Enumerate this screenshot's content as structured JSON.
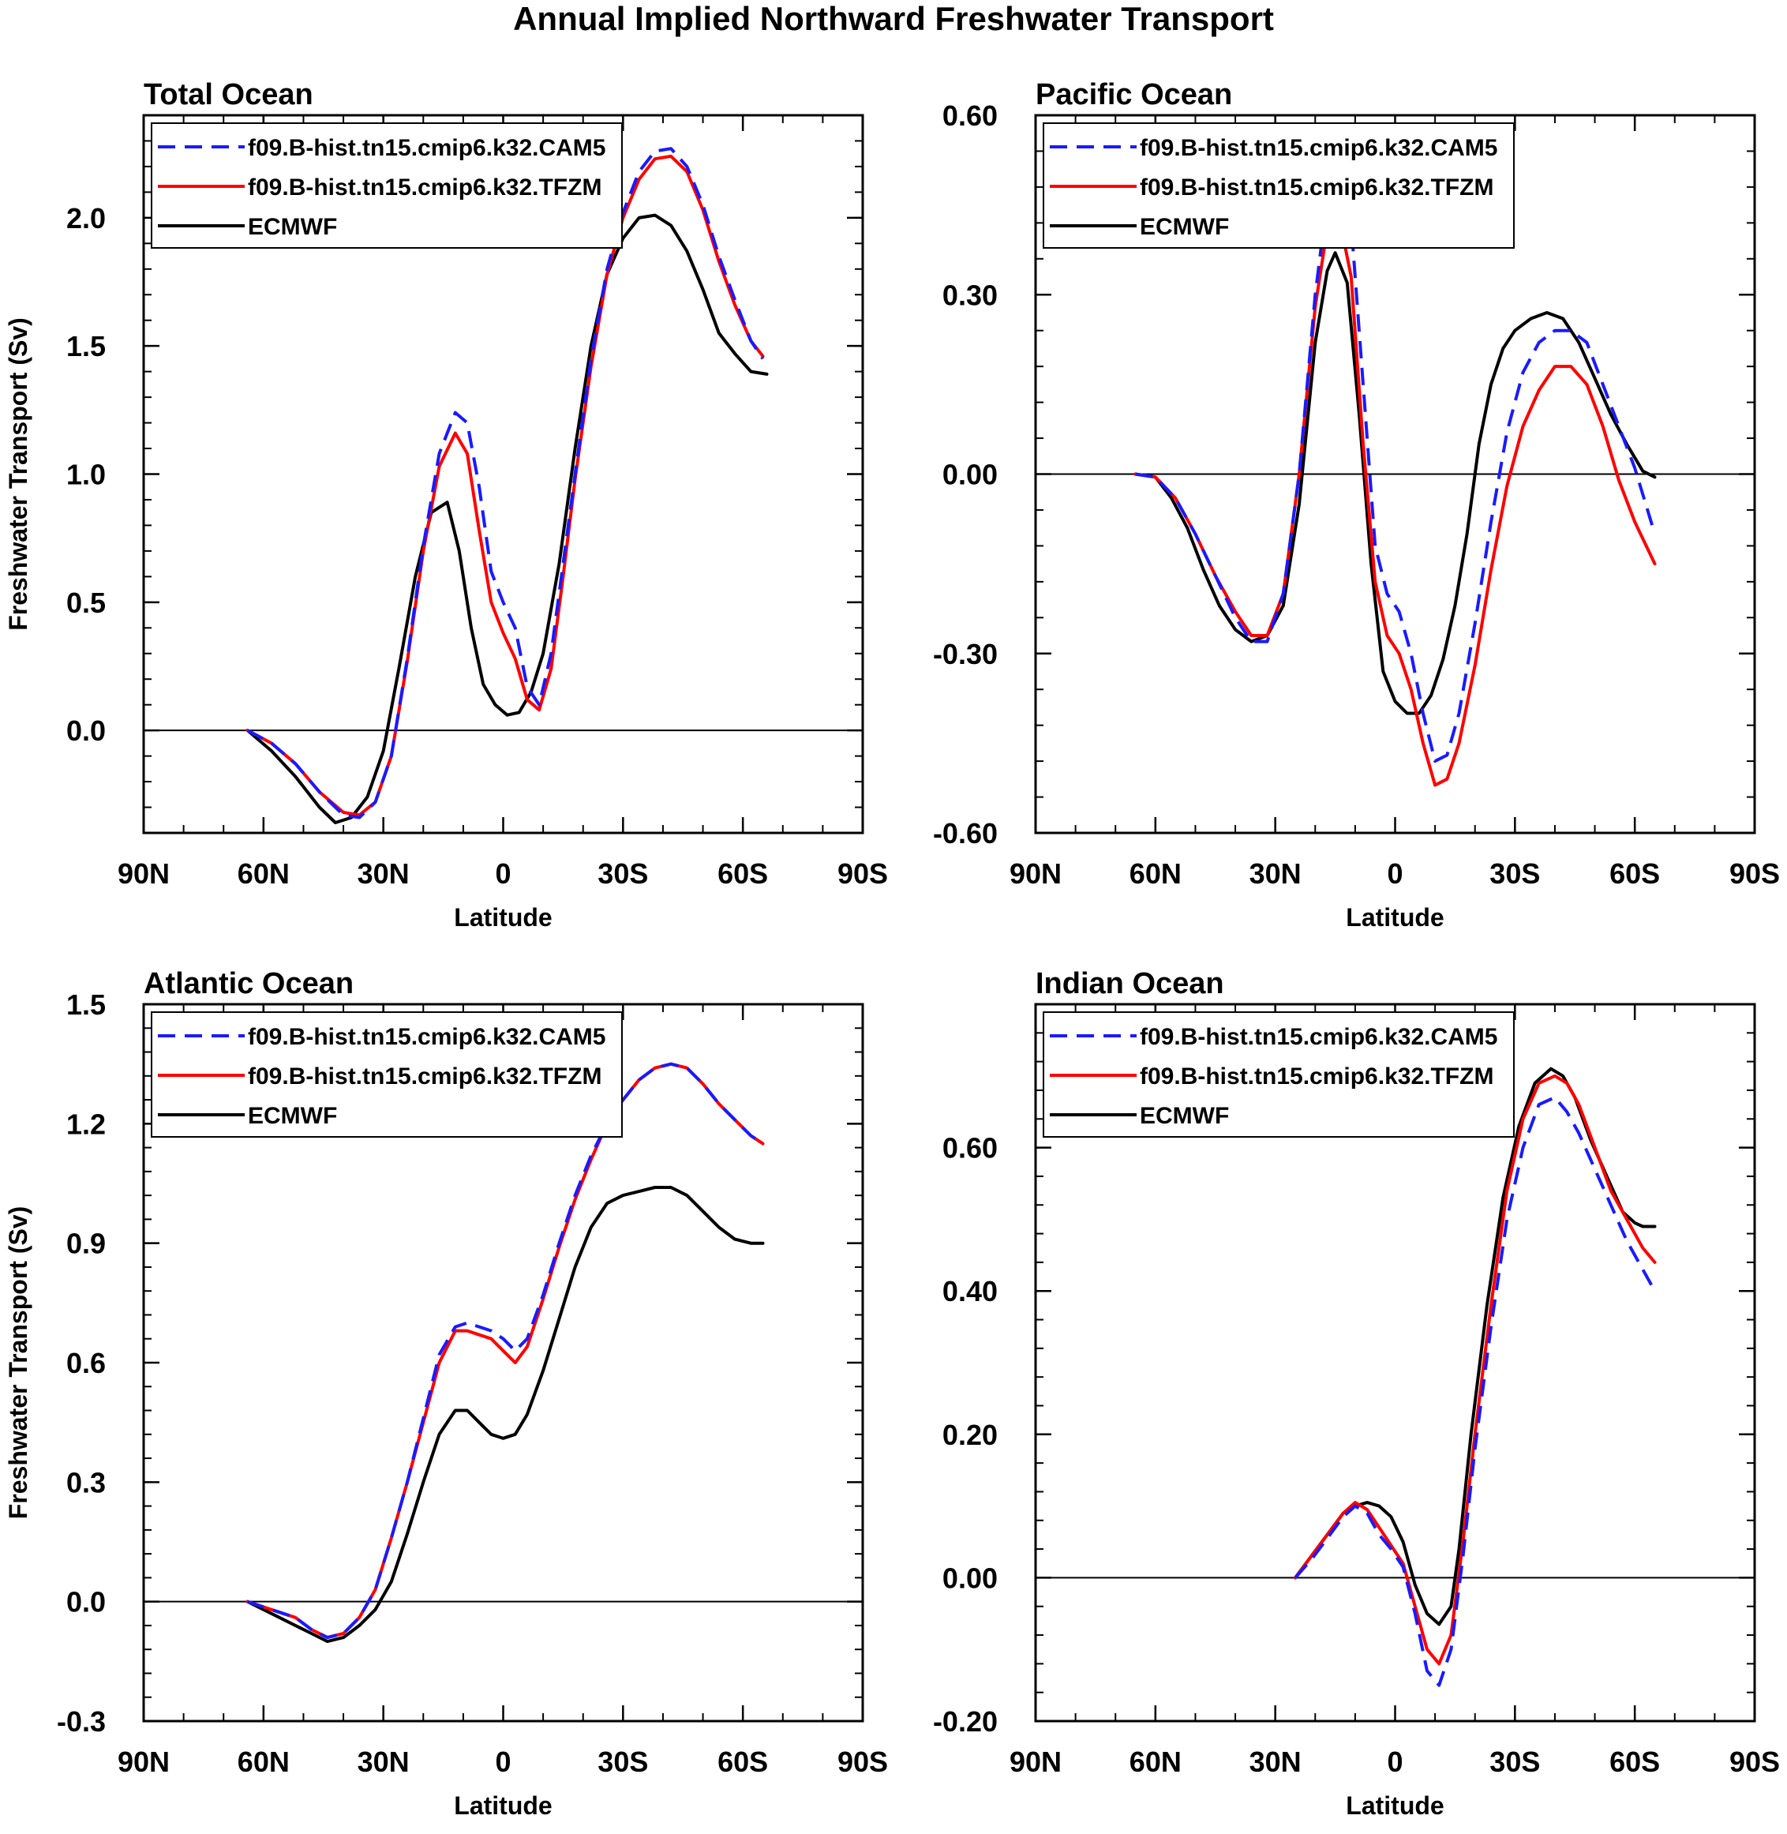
{
  "figure_title": "Annual Implied Northward Freshwater Transport",
  "colors": {
    "cam5": "#1a1aff",
    "tfzm": "#ff0000",
    "ecmwf": "#000000"
  },
  "chart_data": [
    {
      "type": "line",
      "title": "Total Ocean",
      "xlabel": "Latitude",
      "ylabel": "Freshwater Transport (Sv)",
      "xlim": [
        -90,
        90
      ],
      "ylim": [
        -0.4,
        2.4
      ],
      "x_ticks": [
        -90,
        -60,
        -30,
        0,
        30,
        60,
        90
      ],
      "x_tick_labels": [
        "90N",
        "60N",
        "30N",
        "0",
        "30S",
        "60S",
        "90S"
      ],
      "y_ticks": [
        0.0,
        0.5,
        1.0,
        1.5,
        2.0
      ],
      "y_tick_labels": [
        "0.0",
        "0.5",
        "1.0",
        "1.5",
        "2.0"
      ],
      "zero_line": true,
      "legend_position": "top-left",
      "series": [
        {
          "name": "f09.B-hist.tn15.cmip6.k32.CAM5",
          "style": "dashed",
          "colorKey": "cam5",
          "x": [
            -64,
            -58,
            -52,
            -46,
            -40,
            -36,
            -32,
            -28,
            -24,
            -20,
            -16,
            -12,
            -9,
            -6,
            -3,
            0,
            3,
            6,
            9,
            12,
            15,
            18,
            22,
            26,
            30,
            34,
            38,
            42,
            46,
            50,
            54,
            58,
            62,
            65
          ],
          "y": [
            0.0,
            -0.05,
            -0.13,
            -0.24,
            -0.33,
            -0.34,
            -0.28,
            -0.1,
            0.28,
            0.72,
            1.08,
            1.24,
            1.2,
            0.95,
            0.62,
            0.5,
            0.4,
            0.17,
            0.1,
            0.3,
            0.65,
            1.0,
            1.45,
            1.8,
            2.02,
            2.18,
            2.26,
            2.27,
            2.2,
            2.05,
            1.85,
            1.68,
            1.52,
            1.45
          ]
        },
        {
          "name": "f09.B-hist.tn15.cmip6.k32.TFZM",
          "style": "solid",
          "colorKey": "tfzm",
          "x": [
            -64,
            -58,
            -52,
            -46,
            -40,
            -36,
            -32,
            -28,
            -24,
            -20,
            -16,
            -12,
            -9,
            -6,
            -3,
            0,
            3,
            6,
            9,
            12,
            15,
            18,
            22,
            26,
            30,
            34,
            38,
            42,
            46,
            50,
            54,
            58,
            62,
            65
          ],
          "y": [
            0.0,
            -0.05,
            -0.13,
            -0.24,
            -0.32,
            -0.33,
            -0.28,
            -0.1,
            0.27,
            0.7,
            1.03,
            1.16,
            1.08,
            0.78,
            0.5,
            0.38,
            0.28,
            0.12,
            0.08,
            0.24,
            0.6,
            0.98,
            1.42,
            1.78,
            2.0,
            2.15,
            2.23,
            2.24,
            2.18,
            2.03,
            1.83,
            1.66,
            1.52,
            1.46
          ]
        },
        {
          "name": "ECMWF",
          "style": "solid",
          "colorKey": "ecmwf",
          "x": [
            -64,
            -58,
            -52,
            -46,
            -42,
            -38,
            -34,
            -30,
            -26,
            -22,
            -18,
            -14,
            -11,
            -8,
            -5,
            -2,
            1,
            4,
            7,
            10,
            14,
            18,
            22,
            26,
            30,
            34,
            38,
            42,
            46,
            50,
            54,
            58,
            62,
            66
          ],
          "y": [
            0.0,
            -0.08,
            -0.18,
            -0.3,
            -0.36,
            -0.34,
            -0.26,
            -0.08,
            0.25,
            0.6,
            0.85,
            0.89,
            0.7,
            0.4,
            0.18,
            0.1,
            0.06,
            0.07,
            0.15,
            0.3,
            0.65,
            1.1,
            1.5,
            1.78,
            1.92,
            2.0,
            2.01,
            1.97,
            1.87,
            1.72,
            1.55,
            1.47,
            1.4,
            1.39
          ]
        }
      ]
    },
    {
      "type": "line",
      "title": "Pacific Ocean",
      "xlabel": "Latitude",
      "ylabel": "",
      "xlim": [
        -90,
        90
      ],
      "ylim": [
        -0.6,
        0.6
      ],
      "x_ticks": [
        -90,
        -60,
        -30,
        0,
        30,
        60,
        90
      ],
      "x_tick_labels": [
        "90N",
        "60N",
        "30N",
        "0",
        "30S",
        "60S",
        "90S"
      ],
      "y_ticks": [
        -0.6,
        -0.3,
        0.0,
        0.3,
        0.6
      ],
      "y_tick_labels": [
        "-0.60",
        "-0.30",
        "0.00",
        "0.30",
        "0.60"
      ],
      "zero_line": true,
      "legend_position": "top-left",
      "series": [
        {
          "name": "f09.B-hist.tn15.cmip6.k32.CAM5",
          "style": "dashed",
          "colorKey": "cam5",
          "x": [
            -65,
            -60,
            -55,
            -50,
            -45,
            -40,
            -36,
            -32,
            -28,
            -24,
            -20,
            -17,
            -14,
            -11,
            -8,
            -5,
            -2,
            1,
            4,
            7,
            10,
            13,
            16,
            20,
            24,
            28,
            32,
            36,
            40,
            44,
            48,
            52,
            56,
            60,
            65
          ],
          "y": [
            0.0,
            -0.005,
            -0.04,
            -0.1,
            -0.17,
            -0.24,
            -0.28,
            -0.28,
            -0.2,
            0.0,
            0.3,
            0.46,
            0.49,
            0.42,
            0.15,
            -0.12,
            -0.2,
            -0.23,
            -0.3,
            -0.4,
            -0.48,
            -0.47,
            -0.4,
            -0.25,
            -0.08,
            0.07,
            0.17,
            0.22,
            0.24,
            0.24,
            0.22,
            0.15,
            0.08,
            0.01,
            -0.1
          ]
        },
        {
          "name": "f09.B-hist.tn15.cmip6.k32.TFZM",
          "style": "solid",
          "colorKey": "tfzm",
          "x": [
            -65,
            -60,
            -55,
            -50,
            -45,
            -40,
            -36,
            -32,
            -28,
            -24,
            -20,
            -17,
            -14,
            -11,
            -8,
            -5,
            -2,
            1,
            4,
            7,
            10,
            13,
            16,
            20,
            24,
            28,
            32,
            36,
            40,
            44,
            48,
            52,
            56,
            60,
            65
          ],
          "y": [
            0.0,
            -0.005,
            -0.04,
            -0.1,
            -0.17,
            -0.23,
            -0.27,
            -0.27,
            -0.2,
            0.0,
            0.28,
            0.41,
            0.43,
            0.33,
            0.05,
            -0.18,
            -0.27,
            -0.3,
            -0.36,
            -0.45,
            -0.52,
            -0.51,
            -0.45,
            -0.32,
            -0.16,
            -0.02,
            0.08,
            0.14,
            0.18,
            0.18,
            0.15,
            0.08,
            -0.01,
            -0.08,
            -0.15
          ]
        },
        {
          "name": "ECMWF",
          "style": "solid",
          "colorKey": "ecmwf",
          "x": [
            -65,
            -60,
            -56,
            -52,
            -48,
            -44,
            -40,
            -36,
            -32,
            -28,
            -24,
            -20,
            -17,
            -15,
            -12,
            -9,
            -6,
            -3,
            0,
            3,
            6,
            9,
            12,
            15,
            18,
            21,
            24,
            27,
            30,
            34,
            38,
            42,
            46,
            50,
            54,
            58,
            62,
            65
          ],
          "y": [
            0.0,
            -0.005,
            -0.04,
            -0.09,
            -0.16,
            -0.22,
            -0.26,
            -0.28,
            -0.27,
            -0.22,
            -0.05,
            0.22,
            0.34,
            0.37,
            0.32,
            0.1,
            -0.15,
            -0.33,
            -0.38,
            -0.4,
            -0.4,
            -0.37,
            -0.31,
            -0.22,
            -0.1,
            0.05,
            0.15,
            0.21,
            0.24,
            0.26,
            0.27,
            0.26,
            0.22,
            0.16,
            0.1,
            0.05,
            0.005,
            -0.005
          ]
        }
      ]
    },
    {
      "type": "line",
      "title": "Atlantic Ocean",
      "xlabel": "Latitude",
      "ylabel": "Freshwater Transport (Sv)",
      "xlim": [
        -90,
        90
      ],
      "ylim": [
        -0.3,
        1.5
      ],
      "x_ticks": [
        -90,
        -60,
        -30,
        0,
        30,
        60,
        90
      ],
      "x_tick_labels": [
        "90N",
        "60N",
        "30N",
        "0",
        "30S",
        "60S",
        "90S"
      ],
      "y_ticks": [
        -0.3,
        0.0,
        0.3,
        0.6,
        0.9,
        1.2,
        1.5
      ],
      "y_tick_labels": [
        "-0.3",
        "0.0",
        "0.3",
        "0.6",
        "0.9",
        "1.2",
        "1.5"
      ],
      "zero_line": true,
      "legend_position": "top-left",
      "series": [
        {
          "name": "f09.B-hist.tn15.cmip6.k32.CAM5",
          "style": "dashed",
          "colorKey": "cam5",
          "x": [
            -64,
            -58,
            -52,
            -48,
            -44,
            -40,
            -36,
            -32,
            -28,
            -24,
            -20,
            -16,
            -12,
            -9,
            -6,
            -3,
            0,
            3,
            6,
            10,
            14,
            18,
            22,
            26,
            30,
            34,
            38,
            42,
            46,
            50,
            54,
            58,
            62,
            65
          ],
          "y": [
            0.0,
            -0.02,
            -0.04,
            -0.07,
            -0.09,
            -0.08,
            -0.04,
            0.03,
            0.16,
            0.3,
            0.46,
            0.62,
            0.69,
            0.7,
            0.69,
            0.68,
            0.66,
            0.63,
            0.66,
            0.77,
            0.9,
            1.02,
            1.12,
            1.2,
            1.26,
            1.31,
            1.34,
            1.35,
            1.34,
            1.3,
            1.25,
            1.21,
            1.17,
            1.15
          ]
        },
        {
          "name": "f09.B-hist.tn15.cmip6.k32.TFZM",
          "style": "solid",
          "colorKey": "tfzm",
          "x": [
            -64,
            -58,
            -52,
            -48,
            -44,
            -40,
            -36,
            -32,
            -28,
            -24,
            -20,
            -16,
            -12,
            -9,
            -6,
            -3,
            0,
            3,
            6,
            10,
            14,
            18,
            22,
            26,
            30,
            34,
            38,
            42,
            46,
            50,
            54,
            58,
            62,
            65
          ],
          "y": [
            0.0,
            -0.02,
            -0.04,
            -0.07,
            -0.09,
            -0.08,
            -0.04,
            0.03,
            0.16,
            0.3,
            0.45,
            0.6,
            0.68,
            0.68,
            0.67,
            0.66,
            0.63,
            0.6,
            0.64,
            0.76,
            0.89,
            1.01,
            1.11,
            1.2,
            1.26,
            1.31,
            1.34,
            1.35,
            1.34,
            1.3,
            1.25,
            1.21,
            1.17,
            1.15
          ]
        },
        {
          "name": "ECMWF",
          "style": "solid",
          "colorKey": "ecmwf",
          "x": [
            -64,
            -58,
            -52,
            -48,
            -44,
            -40,
            -36,
            -32,
            -28,
            -24,
            -20,
            -16,
            -12,
            -9,
            -6,
            -3,
            0,
            3,
            6,
            10,
            14,
            18,
            22,
            26,
            30,
            34,
            38,
            42,
            46,
            50,
            54,
            58,
            62,
            65
          ],
          "y": [
            0.0,
            -0.03,
            -0.06,
            -0.08,
            -0.1,
            -0.09,
            -0.06,
            -0.02,
            0.05,
            0.17,
            0.3,
            0.42,
            0.48,
            0.48,
            0.45,
            0.42,
            0.41,
            0.42,
            0.47,
            0.58,
            0.71,
            0.84,
            0.94,
            1.0,
            1.02,
            1.03,
            1.04,
            1.04,
            1.02,
            0.98,
            0.94,
            0.91,
            0.9,
            0.9
          ]
        }
      ]
    },
    {
      "type": "line",
      "title": "Indian Ocean",
      "xlabel": "Latitude",
      "ylabel": "",
      "xlim": [
        -90,
        90
      ],
      "ylim": [
        -0.2,
        0.8
      ],
      "x_ticks": [
        -90,
        -60,
        -30,
        0,
        30,
        60,
        90
      ],
      "x_tick_labels": [
        "90N",
        "60N",
        "30N",
        "0",
        "30S",
        "60S",
        "90S"
      ],
      "y_ticks": [
        -0.2,
        0.0,
        0.2,
        0.4,
        0.6
      ],
      "y_tick_labels": [
        "-0.20",
        "0.00",
        "0.20",
        "0.40",
        "0.60"
      ],
      "zero_line": true,
      "legend_position": "top-left",
      "series": [
        {
          "name": "f09.B-hist.tn15.cmip6.k32.CAM5",
          "style": "dashed",
          "colorKey": "cam5",
          "x": [
            -25,
            -21,
            -17,
            -13,
            -10,
            -7,
            -4,
            -1,
            2,
            5,
            8,
            11,
            14,
            17,
            20,
            24,
            28,
            32,
            36,
            40,
            43,
            46,
            50,
            54,
            58,
            62,
            65
          ],
          "y": [
            0.0,
            0.025,
            0.055,
            0.085,
            0.1,
            0.09,
            0.06,
            0.04,
            0.015,
            -0.05,
            -0.13,
            -0.15,
            -0.1,
            0.03,
            0.18,
            0.35,
            0.5,
            0.6,
            0.66,
            0.67,
            0.65,
            0.62,
            0.57,
            0.52,
            0.47,
            0.43,
            0.4
          ]
        },
        {
          "name": "f09.B-hist.tn15.cmip6.k32.TFZM",
          "style": "solid",
          "colorKey": "tfzm",
          "x": [
            -25,
            -21,
            -17,
            -13,
            -10,
            -7,
            -4,
            -1,
            2,
            5,
            8,
            11,
            14,
            17,
            20,
            24,
            28,
            32,
            36,
            40,
            43,
            46,
            50,
            54,
            58,
            62,
            65
          ],
          "y": [
            0.0,
            0.03,
            0.06,
            0.09,
            0.105,
            0.095,
            0.07,
            0.045,
            0.02,
            -0.04,
            -0.1,
            -0.12,
            -0.08,
            0.05,
            0.2,
            0.38,
            0.54,
            0.64,
            0.69,
            0.7,
            0.69,
            0.66,
            0.6,
            0.54,
            0.5,
            0.46,
            0.44
          ]
        },
        {
          "name": "ECMWF",
          "style": "solid",
          "colorKey": "ecmwf",
          "x": [
            -25,
            -21,
            -17,
            -13,
            -10,
            -7,
            -4,
            -1,
            2,
            5,
            8,
            11,
            14,
            16,
            19,
            23,
            27,
            31,
            35,
            39,
            42,
            45,
            49,
            53,
            57,
            60,
            62,
            65
          ],
          "y": [
            0.0,
            0.03,
            0.06,
            0.09,
            0.1,
            0.105,
            0.1,
            0.085,
            0.05,
            -0.01,
            -0.05,
            -0.065,
            -0.04,
            0.04,
            0.2,
            0.38,
            0.53,
            0.63,
            0.69,
            0.71,
            0.7,
            0.67,
            0.61,
            0.56,
            0.51,
            0.495,
            0.49,
            0.49
          ]
        }
      ]
    }
  ]
}
